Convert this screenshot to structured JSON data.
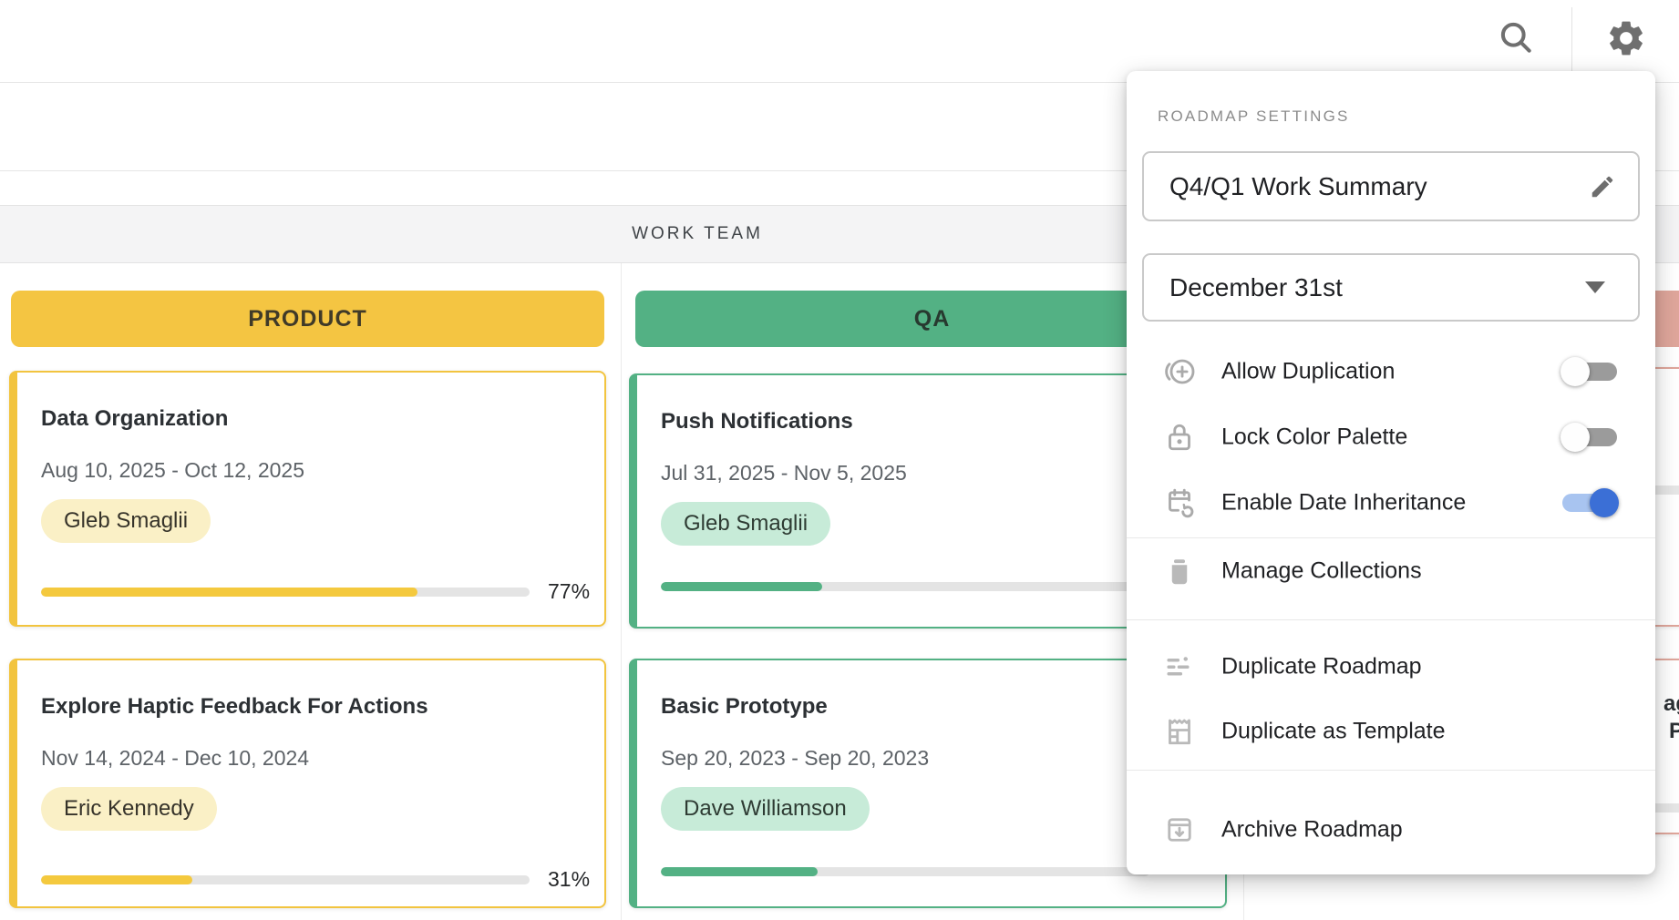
{
  "toolbar": {
    "search_icon": "magnifier",
    "settings_icon": "gear"
  },
  "board": {
    "group_header": "WORK TEAM",
    "columns": [
      {
        "name": "PRODUCT",
        "color": "#F4C542",
        "chip_bg": "#FAF0C6",
        "cards": [
          {
            "title": "Data Organization",
            "dates": "Aug 10, 2025 - Oct 12, 2025",
            "assignee": "Gleb Smaglii",
            "progress": 77,
            "progress_label": "77%"
          },
          {
            "title": "Explore Haptic Feedback For Actions",
            "dates": "Nov 14, 2024 - Dec 10, 2024",
            "assignee": "Eric Kennedy",
            "progress": 31,
            "progress_label": "31%"
          }
        ]
      },
      {
        "name": "QA",
        "color": "#53B184",
        "chip_bg": "#C7EBD8",
        "cards": [
          {
            "title": "Push Notifications",
            "dates": "Jul 31, 2025 - Nov 5, 2025",
            "assignee": "Gleb Smaglii",
            "progress": 33,
            "progress_label": ""
          },
          {
            "title": "Basic Prototype",
            "dates": "Sep 20, 2023 - Sep 20, 2023",
            "assignee": "Dave Williamson",
            "progress": 32,
            "progress_label": ""
          }
        ]
      },
      {
        "name": "",
        "color": "#DFA69B",
        "partial": true,
        "fragments": {
          "line1": "ag",
          "line2": "P"
        },
        "cards": [
          {
            "title": "",
            "progress": 30,
            "progress_label": ""
          },
          {
            "title": "",
            "progress": 30,
            "progress_label": ""
          }
        ]
      }
    ]
  },
  "panel": {
    "header": "ROADMAP SETTINGS",
    "name_field": {
      "value": "Q4/Q1 Work Summary",
      "edit_icon": "pencil"
    },
    "date_field": {
      "value": "December 31st",
      "caret": "chevron-down"
    },
    "toggles": [
      {
        "label": "Allow Duplication",
        "state": "off",
        "icon": "duplicate-circle"
      },
      {
        "label": "Lock Color Palette",
        "state": "off",
        "icon": "lock"
      },
      {
        "label": "Enable Date Inheritance",
        "state": "on",
        "icon": "calendar-sync"
      }
    ],
    "menu": [
      {
        "label": "Manage Collections",
        "icon": "collections-bin"
      },
      {
        "label": "Duplicate Roadmap",
        "icon": "list-lines"
      },
      {
        "label": "Duplicate as Template",
        "icon": "template-receipt"
      },
      {
        "label": "Archive Roadmap",
        "icon": "archive-box"
      }
    ],
    "colors": {
      "toggle_on_knob": "#3B6FD6",
      "toggle_on_track": "#A8C4F0",
      "toggle_off_track": "#9B9B9B"
    }
  }
}
